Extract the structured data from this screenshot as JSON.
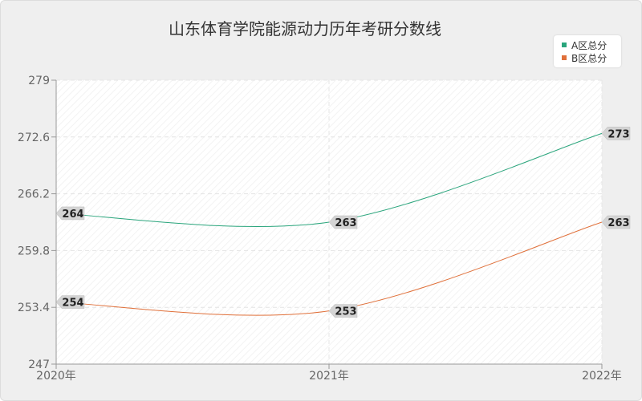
{
  "chart_data": {
    "type": "line",
    "title": "山东体育学院能源动力历年考研分数线",
    "categories": [
      "2020年",
      "2021年",
      "2022年"
    ],
    "yticks": [
      "247",
      "253.4",
      "259.8",
      "266.2",
      "272.6",
      "279"
    ],
    "ylim": [
      247,
      279
    ],
    "grid": true,
    "legend_position": "top-right",
    "series": [
      {
        "name": "A区总分",
        "values": [
          264,
          263,
          273
        ],
        "labels": [
          "264",
          "263",
          "273"
        ],
        "color": "#2aa57c"
      },
      {
        "name": "B区总分",
        "values": [
          254,
          253,
          263
        ],
        "labels": [
          "254",
          "253",
          "263"
        ],
        "color": "#e0703a"
      }
    ]
  }
}
